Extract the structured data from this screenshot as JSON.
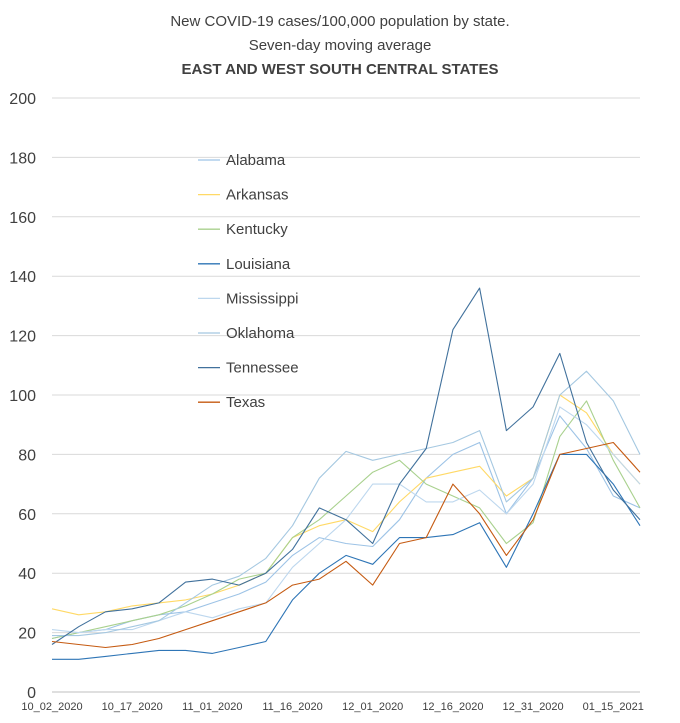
{
  "chart_data": {
    "type": "line",
    "title": "New COVID-19 cases/100,000 population by state.",
    "subtitle": "Seven-day moving average",
    "subtitle2": "EAST AND WEST SOUTH CENTRAL STATES",
    "xlabel": "",
    "ylabel": "",
    "ylim": [
      0,
      200
    ],
    "yticks": [
      0,
      20,
      40,
      60,
      80,
      100,
      120,
      140,
      160,
      180,
      200
    ],
    "x": [
      "10_02_2020",
      "10_07_2020",
      "10_12_2020",
      "10_17_2020",
      "10_22_2020",
      "10_27_2020",
      "11_01_2020",
      "11_06_2020",
      "11_11_2020",
      "11_16_2020",
      "11_21_2020",
      "11_26_2020",
      "12_01_2020",
      "12_06_2020",
      "12_11_2020",
      "12_16_2020",
      "12_21_2020",
      "12_26_2020",
      "12_31_2020",
      "01_05_2021",
      "01_10_2021",
      "01_15_2021",
      "01_17_2021"
    ],
    "xtick_labels": [
      "10_02_2020",
      "10_17_2020",
      "11_01_2020",
      "11_16_2020",
      "12_01_2020",
      "12_16_2020",
      "12_31_2020",
      "01_15_2021"
    ],
    "grid": true,
    "legend_position": "upper-left",
    "series": [
      {
        "name": "Alabama",
        "color": "#9dc3e6",
        "values": [
          18,
          20,
          21,
          24,
          26,
          27,
          30,
          33,
          37,
          46,
          52,
          50,
          49,
          58,
          72,
          80,
          84,
          60,
          72,
          93,
          82,
          66,
          62
        ]
      },
      {
        "name": "Arkansas",
        "color": "#ffd966",
        "values": [
          28,
          26,
          27,
          29,
          30,
          31,
          33,
          36,
          40,
          52,
          56,
          58,
          54,
          64,
          72,
          74,
          76,
          66,
          72,
          100,
          94,
          80,
          70
        ]
      },
      {
        "name": "Kentucky",
        "color": "#a9d18e",
        "values": [
          18,
          20,
          22,
          24,
          26,
          29,
          33,
          38,
          40,
          52,
          58,
          66,
          74,
          78,
          70,
          66,
          62,
          50,
          57,
          86,
          98,
          78,
          62
        ]
      },
      {
        "name": "Louisiana",
        "color": "#2e75b6",
        "values": [
          11,
          11,
          12,
          13,
          14,
          14,
          13,
          15,
          17,
          31,
          40,
          46,
          43,
          52,
          52,
          53,
          57,
          42,
          60,
          80,
          80,
          70,
          56
        ]
      },
      {
        "name": "Mississippi",
        "color": "#bdd7ee",
        "values": [
          21,
          20,
          21,
          21,
          24,
          27,
          25,
          28,
          30,
          42,
          50,
          58,
          70,
          70,
          64,
          64,
          68,
          60,
          70,
          96,
          90,
          80,
          70
        ]
      },
      {
        "name": "Oklahoma",
        "color": "#a5c8e1",
        "values": [
          19,
          19,
          20,
          22,
          24,
          30,
          36,
          39,
          45,
          56,
          72,
          81,
          78,
          80,
          82,
          84,
          88,
          64,
          72,
          100,
          108,
          98,
          80
        ]
      },
      {
        "name": "Tennessee",
        "color": "#41719c",
        "values": [
          16,
          22,
          27,
          28,
          30,
          37,
          38,
          36,
          40,
          48,
          62,
          58,
          50,
          70,
          82,
          122,
          136,
          88,
          96,
          114,
          84,
          68,
          58
        ]
      },
      {
        "name": "Texas",
        "color": "#c55a11",
        "values": [
          17,
          16,
          15,
          16,
          18,
          21,
          24,
          27,
          30,
          36,
          38,
          44,
          36,
          50,
          52,
          70,
          60,
          46,
          58,
          80,
          82,
          84,
          74
        ]
      }
    ]
  }
}
